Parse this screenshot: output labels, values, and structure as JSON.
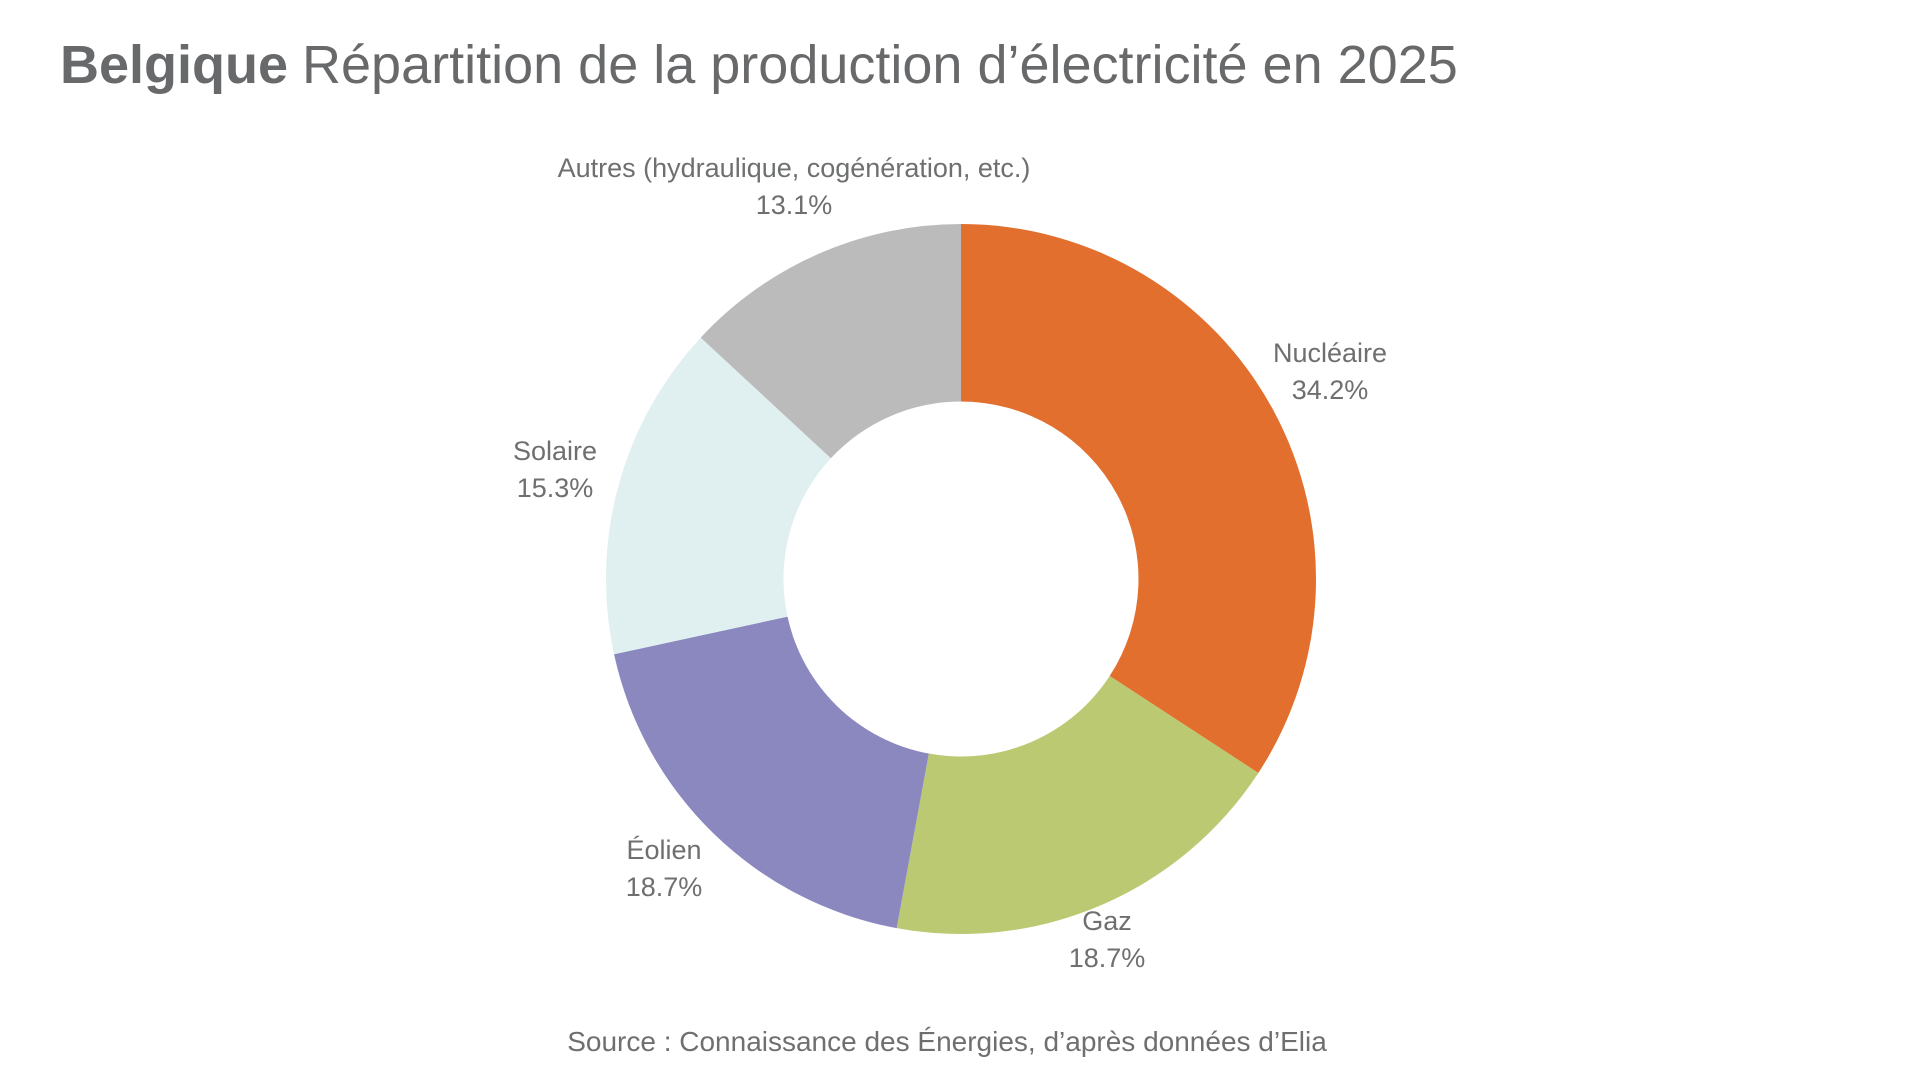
{
  "header": {
    "title_bold": "Belgique",
    "title_rest": "Répartition de la production d’électricité en 2025"
  },
  "footer": {
    "source": "Source : Connaissance des Énergies, d’après données d’Elia"
  },
  "chart_data": {
    "type": "pie",
    "subtype": "donut",
    "title": "Belgique Répartition de la production d’électricité en 2025",
    "unit": "percent",
    "direction": "clockwise",
    "start_angle": "12-o'clock",
    "inner_radius_ratio": 0.5,
    "legend_position": "labels outside slices with percentages",
    "slices": [
      {
        "label": "Nucléaire",
        "value": 34.2,
        "pct_label": "34.2%",
        "color": "#E26F2E"
      },
      {
        "label": "Gaz",
        "value": 18.7,
        "pct_label": "18.7%",
        "color": "#BBCA72"
      },
      {
        "label": "Éolien",
        "value": 18.7,
        "pct_label": "18.7%",
        "color": "#8B88C0"
      },
      {
        "label": "Solaire",
        "value": 15.3,
        "pct_label": "15.3%",
        "color": "#E0F0F1"
      },
      {
        "label": "Autres (hydraulique, cogénération, etc.)",
        "value": 13.1,
        "pct_label": "13.1%",
        "color": "#BBBBBB"
      }
    ],
    "source": "Source : Connaissance des Énergies, d’après données d’Elia",
    "colors": {
      "title_text": "#68696B",
      "label_text": "#6E6F71",
      "background": "#FFFFFF"
    }
  }
}
